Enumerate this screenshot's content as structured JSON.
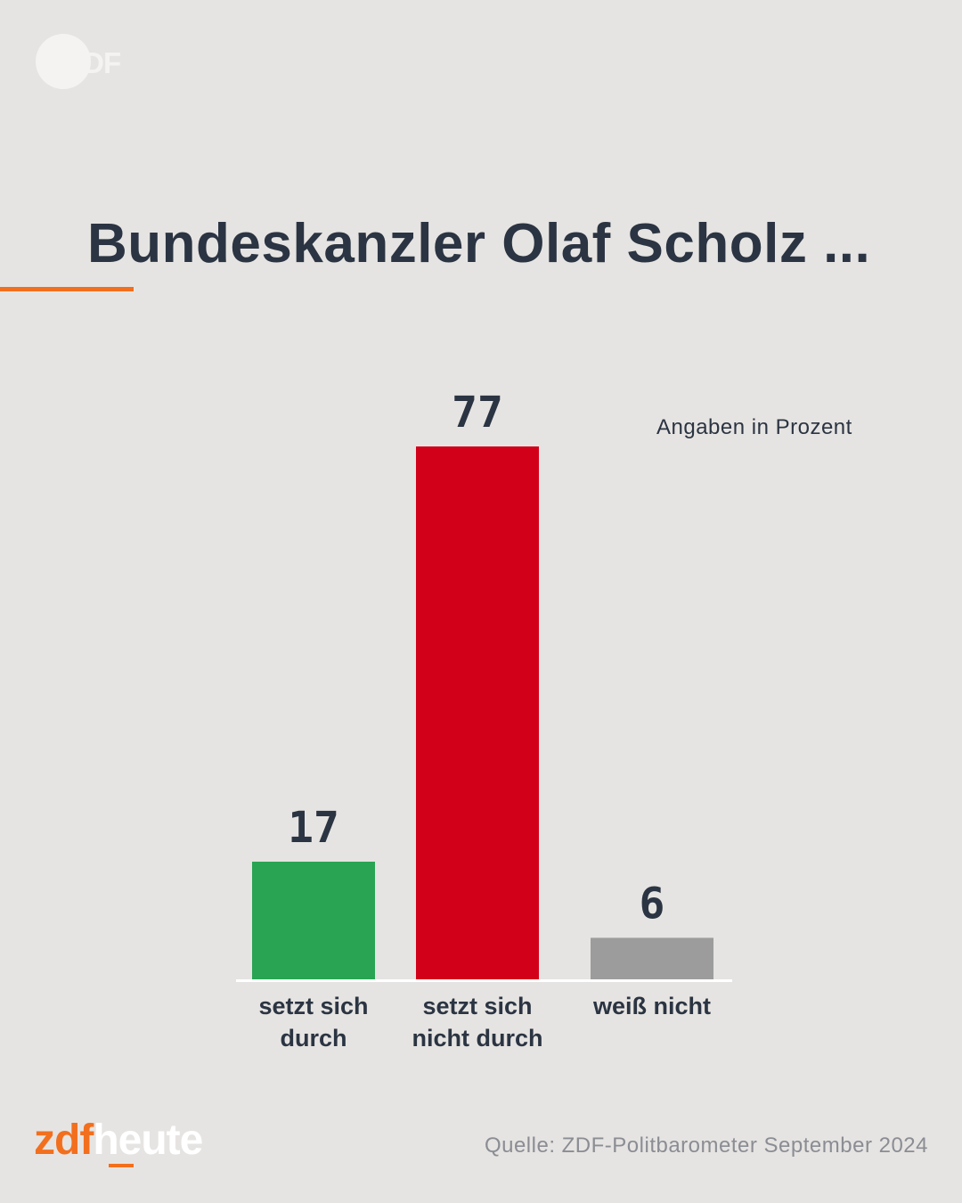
{
  "watermark": {
    "text": "ZDF"
  },
  "title": "Bundeskanzler Olaf Scholz ...",
  "unit_note": "Angaben in Prozent",
  "colors": {
    "background": "#e6e4e2",
    "accent": "#f26f1e",
    "text": "#2b3442"
  },
  "chart_data": {
    "type": "bar",
    "title": "Bundeskanzler Olaf Scholz ...",
    "categories": [
      "setzt sich durch",
      "setzt sich nicht durch",
      "weiß nicht"
    ],
    "category_lines": [
      [
        "setzt sich",
        "durch"
      ],
      [
        "setzt sich",
        "nicht durch"
      ],
      [
        "weiß nicht"
      ]
    ],
    "values": [
      17,
      77,
      6
    ],
    "colors": [
      "#28a453",
      "#d3001a",
      "#9c9c9c"
    ],
    "ylim": [
      0,
      77
    ],
    "grid": false,
    "xlabel": "",
    "ylabel": ""
  },
  "brand": {
    "part1": "zdf",
    "part2": "heute"
  },
  "source": "Quelle: ZDF-Politbarometer September 2024"
}
